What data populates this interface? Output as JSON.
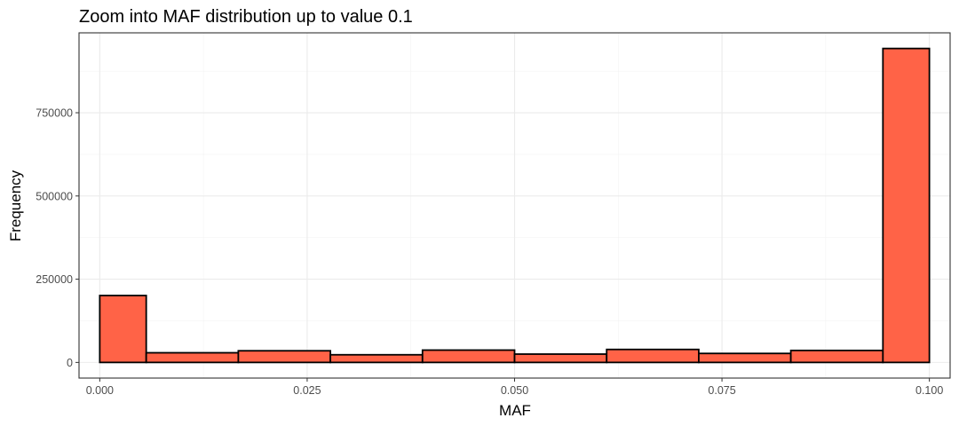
{
  "chart_data": {
    "type": "bar",
    "title": "Zoom into MAF distribution up to value 0.1",
    "xlabel": "MAF",
    "ylabel": "Frequency",
    "bins": [
      {
        "x0": 0.0,
        "x1": 0.0056,
        "value": 201000
      },
      {
        "x0": 0.0056,
        "x1": 0.0167,
        "value": 29000
      },
      {
        "x0": 0.0167,
        "x1": 0.0278,
        "value": 35000
      },
      {
        "x0": 0.0278,
        "x1": 0.0389,
        "value": 23000
      },
      {
        "x0": 0.0389,
        "x1": 0.05,
        "value": 37000
      },
      {
        "x0": 0.05,
        "x1": 0.0611,
        "value": 25000
      },
      {
        "x0": 0.0611,
        "x1": 0.0722,
        "value": 39000
      },
      {
        "x0": 0.0722,
        "x1": 0.0833,
        "value": 27000
      },
      {
        "x0": 0.0833,
        "x1": 0.0944,
        "value": 36000
      },
      {
        "x0": 0.0944,
        "x1": 0.1,
        "value": 943000
      }
    ],
    "xlim": [
      -0.0025,
      0.1025
    ],
    "ylim": [
      -47000,
      990000
    ],
    "xticks": [
      0.0,
      0.025,
      0.05,
      0.075,
      0.1
    ],
    "xtick_labels": [
      "0.000",
      "0.025",
      "0.050",
      "0.075",
      "0.100"
    ],
    "yticks": [
      0,
      250000,
      500000,
      750000
    ],
    "ytick_labels": [
      "0",
      "250000",
      "500000",
      "750000"
    ],
    "grid": true,
    "colors": {
      "fill": "#FF6347",
      "outline": "#000000",
      "panel_border": "#333333"
    }
  }
}
